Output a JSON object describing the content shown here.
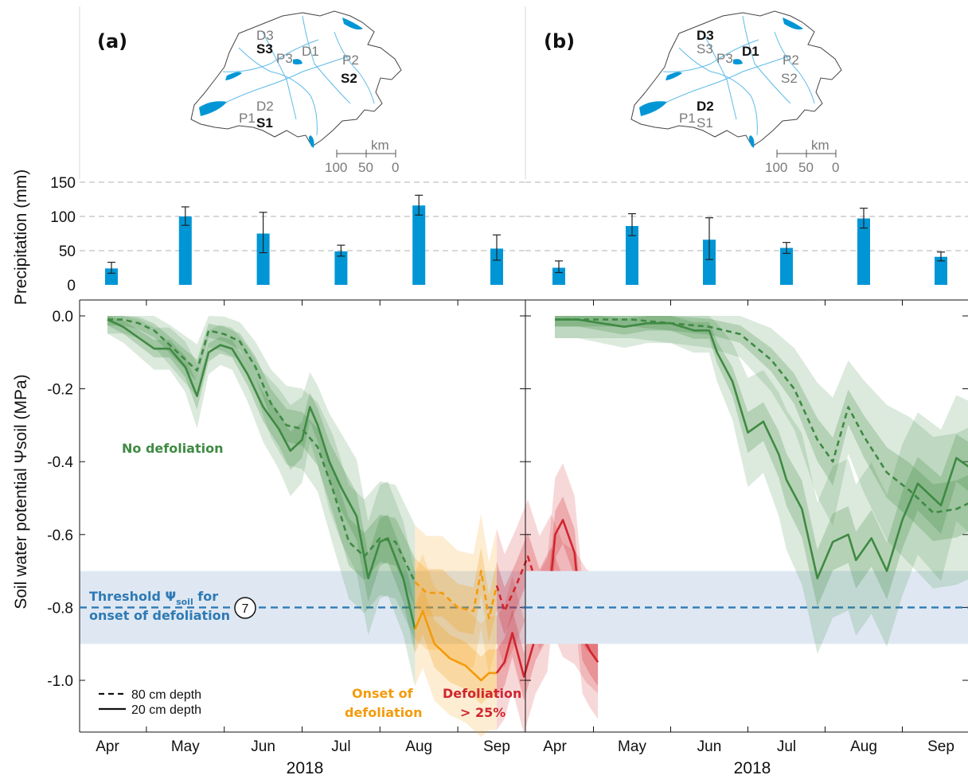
{
  "chart_data": [
    {
      "type": "bar",
      "panel": "a",
      "ylabel": "Precipitation (mm)",
      "ylim": [
        0,
        150
      ],
      "yticks": [
        "0",
        "50",
        "100",
        "150"
      ],
      "grid": "dashed horizontal at 50, 100, 150",
      "categories": [
        "Apr",
        "May",
        "Jun",
        "Jul",
        "Aug",
        "Sep"
      ],
      "values": [
        24,
        100,
        75,
        49,
        116,
        53
      ],
      "error_low": [
        17,
        87,
        47,
        42,
        102,
        36
      ],
      "error_high": [
        33,
        114,
        106,
        58,
        131,
        73
      ],
      "color": "#0096d6"
    },
    {
      "type": "bar",
      "panel": "b",
      "ylim": [
        0,
        150
      ],
      "grid": "dashed horizontal at 50, 100, 150",
      "categories": [
        "Apr",
        "May",
        "Jun",
        "Jul",
        "Aug",
        "Sep"
      ],
      "values": [
        25,
        86,
        66,
        54,
        97,
        41
      ],
      "error_low": [
        18,
        72,
        37,
        46,
        83,
        35
      ],
      "error_high": [
        35,
        104,
        98,
        62,
        112,
        48
      ],
      "color": "#0096d6"
    },
    {
      "type": "line",
      "panel": "a",
      "ylabel": "Soil water potential Ψsoil (MPa)",
      "xlabel": "2018",
      "x_ticks": [
        "Apr",
        "May",
        "Jun",
        "Jul",
        "Aug",
        "Sep"
      ],
      "ylim": [
        -1.15,
        0.05
      ],
      "y_ticks": [
        "0.0",
        "-0.2",
        "-0.4",
        "-0.6",
        "-0.8",
        "-1.0"
      ],
      "threshold": {
        "value": -0.8,
        "band": [
          -0.9,
          -0.7
        ],
        "label_main": "Threshold Ψ",
        "label_sub": "soil",
        "label_tail": " for",
        "label_line2": "onset of defoliation",
        "marker": "7"
      },
      "annotations": {
        "no_defoliation": "No defoliation",
        "onset_line1": "Onset of",
        "onset_line2": "defoliation",
        "defol_line1": "Defoliation",
        "defol_line2": "> 25%"
      },
      "legend": {
        "dashed": "80 cm depth",
        "solid": "20 cm depth"
      },
      "series": [
        {
          "depth": "20 cm",
          "style": "solid",
          "segments": [
            {
              "phase": "No defoliation",
              "color": "#3f8a43",
              "x": [
                0.0,
                0.2,
                0.4,
                0.6,
                0.8,
                1.0,
                1.15,
                1.3,
                1.45,
                1.6,
                1.8,
                2.0,
                2.2,
                2.35,
                2.5,
                2.6,
                2.7,
                2.85,
                3.0,
                3.2,
                3.35,
                3.5,
                3.6,
                3.8,
                3.95
              ],
              "y": [
                -0.01,
                -0.03,
                -0.06,
                -0.09,
                -0.09,
                -0.14,
                -0.22,
                -0.1,
                -0.08,
                -0.09,
                -0.16,
                -0.25,
                -0.31,
                -0.37,
                -0.34,
                -0.25,
                -0.3,
                -0.4,
                -0.47,
                -0.55,
                -0.72,
                -0.62,
                -0.61,
                -0.72,
                -0.86
              ]
            },
            {
              "phase": "Onset of defoliation",
              "color": "#f49b0b",
              "x": [
                3.95,
                4.05,
                4.2,
                4.4,
                4.6,
                4.8,
                4.9,
                5.0
              ],
              "y": [
                -0.86,
                -0.81,
                -0.9,
                -0.94,
                -0.96,
                -1.0,
                -0.98,
                -0.98
              ]
            },
            {
              "phase": "Defoliation > 25%",
              "color": "#d1252e",
              "x": [
                5.0,
                5.1,
                5.2,
                5.35,
                5.5,
                5.65,
                5.75,
                5.85,
                6.0,
                6.1,
                6.2,
                6.3
              ],
              "y": [
                -0.98,
                -0.95,
                -0.87,
                -0.99,
                -0.88,
                -0.82,
                -0.6,
                -0.56,
                -0.65,
                -0.88,
                -0.92,
                -0.95
              ]
            }
          ]
        },
        {
          "depth": "80 cm",
          "style": "dashed",
          "segments": [
            {
              "phase": "No defoliation",
              "color": "#3f8a43",
              "x": [
                0.0,
                0.2,
                0.4,
                0.6,
                0.8,
                1.0,
                1.15,
                1.3,
                1.5,
                1.7,
                1.9,
                2.1,
                2.3,
                2.5,
                2.7,
                2.9,
                3.1,
                3.3,
                3.5,
                3.7,
                3.95
              ],
              "y": [
                -0.01,
                -0.01,
                -0.02,
                -0.04,
                -0.08,
                -0.12,
                -0.15,
                -0.04,
                -0.05,
                -0.07,
                -0.14,
                -0.24,
                -0.3,
                -0.31,
                -0.36,
                -0.48,
                -0.62,
                -0.66,
                -0.61,
                -0.62,
                -0.73
              ]
            },
            {
              "phase": "Onset of defoliation",
              "color": "#f49b0b",
              "x": [
                3.95,
                4.1,
                4.3,
                4.5,
                4.7,
                4.8,
                4.9,
                5.0
              ],
              "y": [
                -0.73,
                -0.76,
                -0.76,
                -0.8,
                -0.81,
                -0.7,
                -0.83,
                -0.74
              ]
            },
            {
              "phase": "Defoliation > 25%",
              "color": "#d1252e",
              "x": [
                5.0,
                5.1,
                5.25,
                5.4,
                5.55,
                5.7,
                5.85,
                6.0,
                6.15,
                6.3
              ],
              "y": [
                -0.74,
                -0.81,
                -0.74,
                -0.66,
                -0.76,
                -0.7,
                -0.78,
                -0.8,
                -0.85,
                -0.88
              ]
            }
          ]
        }
      ]
    },
    {
      "type": "line",
      "panel": "b",
      "xlabel": "2018",
      "x_ticks": [
        "Apr",
        "May",
        "Jun",
        "Jul",
        "Aug",
        "Sep"
      ],
      "ylim": [
        -1.15,
        0.05
      ],
      "threshold": {
        "value": -0.8,
        "band": [
          -0.9,
          -0.7
        ]
      },
      "series": [
        {
          "depth": "20 cm",
          "style": "solid",
          "color": "#3f8a43",
          "x": [
            0.0,
            0.3,
            0.6,
            0.9,
            1.2,
            1.5,
            1.8,
            2.0,
            2.1,
            2.3,
            2.5,
            2.7,
            2.9,
            3.0,
            3.2,
            3.4,
            3.6,
            3.8,
            3.9,
            4.1,
            4.3,
            4.5,
            4.7,
            5.0,
            5.2,
            5.4,
            5.6,
            5.8,
            6.0,
            6.15
          ],
          "y": [
            -0.01,
            -0.01,
            -0.02,
            -0.03,
            -0.02,
            -0.02,
            -0.04,
            -0.04,
            -0.1,
            -0.18,
            -0.32,
            -0.29,
            -0.38,
            -0.45,
            -0.53,
            -0.72,
            -0.62,
            -0.6,
            -0.67,
            -0.61,
            -0.7,
            -0.56,
            -0.46,
            -0.52,
            -0.39,
            -0.42,
            -0.49,
            -0.43,
            -0.51,
            -0.54
          ]
        },
        {
          "depth": "80 cm",
          "style": "dashed",
          "color": "#3f8a43",
          "x": [
            0.0,
            0.5,
            1.0,
            1.5,
            2.0,
            2.4,
            2.8,
            3.1,
            3.4,
            3.6,
            3.8,
            4.0,
            4.3,
            4.6,
            4.9,
            5.2,
            5.5,
            5.8,
            6.0,
            6.15
          ],
          "y": [
            -0.01,
            -0.01,
            -0.01,
            -0.02,
            -0.03,
            -0.05,
            -0.12,
            -0.2,
            -0.34,
            -0.4,
            -0.25,
            -0.33,
            -0.43,
            -0.48,
            -0.54,
            -0.53,
            -0.5,
            -0.48,
            -0.34,
            -0.36
          ]
        }
      ]
    }
  ],
  "panels": {
    "a": {
      "label": "(a)",
      "sites": [
        {
          "text": "D3",
          "bold": false
        },
        {
          "text": "S3",
          "bold": true
        },
        {
          "text": "P3",
          "bold": false
        },
        {
          "text": "D1",
          "bold": false
        },
        {
          "text": "P2",
          "bold": false
        },
        {
          "text": "S2",
          "bold": true
        },
        {
          "text": "D2",
          "bold": false
        },
        {
          "text": "P1",
          "bold": false
        },
        {
          "text": "S1",
          "bold": true
        }
      ]
    },
    "b": {
      "label": "(b)",
      "sites": [
        {
          "text": "D3",
          "bold": true
        },
        {
          "text": "S3",
          "bold": false
        },
        {
          "text": "P3",
          "bold": false
        },
        {
          "text": "D1",
          "bold": true
        },
        {
          "text": "P2",
          "bold": false
        },
        {
          "text": "S2",
          "bold": false
        },
        {
          "text": "D2",
          "bold": true
        },
        {
          "text": "P1",
          "bold": false
        },
        {
          "text": "S1",
          "bold": false
        }
      ]
    }
  },
  "scale_bar": {
    "unit": "km",
    "ticks": [
      "100",
      "50",
      "0"
    ]
  },
  "colors": {
    "precip": "#0096d6",
    "green": "#3f8a43",
    "orange": "#f49b0b",
    "red": "#d1252e",
    "threshold": "#2e7ab5",
    "band": "#dfe8f2"
  }
}
